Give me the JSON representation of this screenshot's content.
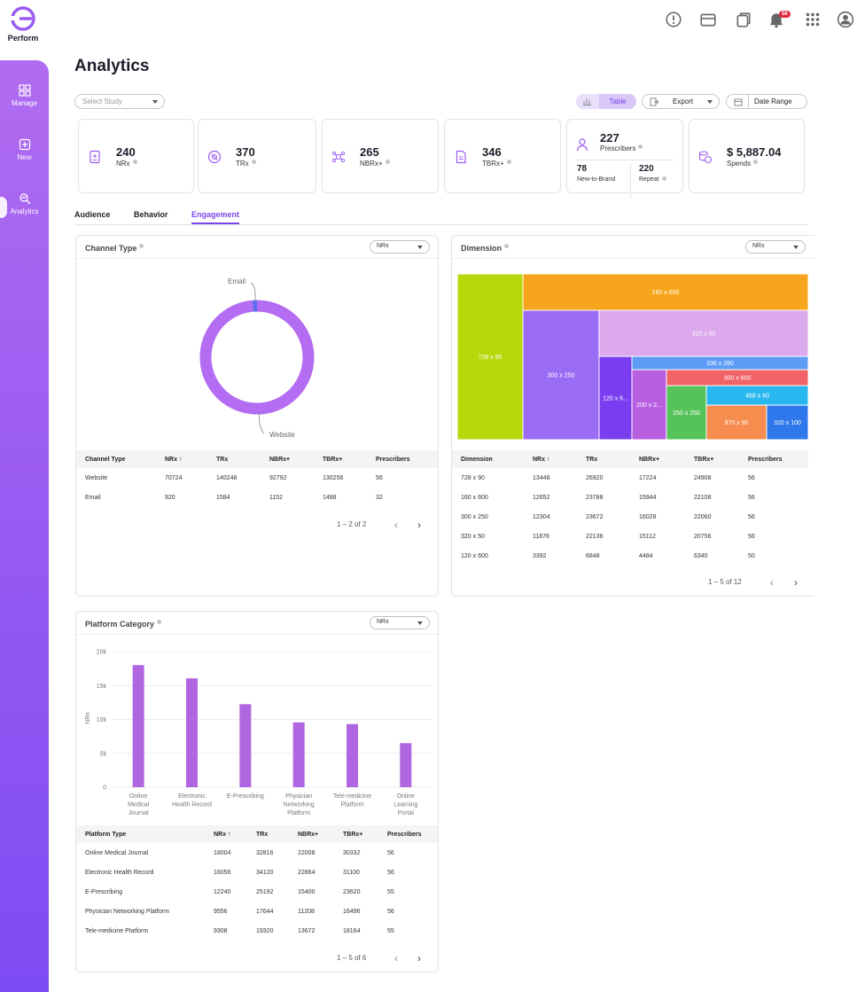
{
  "app": {
    "name": "Perform"
  },
  "sidebar": {
    "items": [
      {
        "label": "Manage"
      },
      {
        "label": "New"
      },
      {
        "label": "Analytics"
      }
    ]
  },
  "header": {
    "notification_count": "56"
  },
  "page": {
    "title": "Analytics"
  },
  "filters": {
    "study_placeholder": "Select Study",
    "view_toggle_label": "Table",
    "export_label": "Export",
    "date_range_label": "Date Range"
  },
  "kpis": [
    {
      "value": "240",
      "label": "NRx"
    },
    {
      "value": "370",
      "label": "TRx"
    },
    {
      "value": "265",
      "label": "NBRx+"
    },
    {
      "value": "346",
      "label": "TBRx+"
    },
    {
      "value": "227",
      "label": "Prescribers",
      "sub": [
        {
          "value": "78",
          "label": "New-to-Brand"
        },
        {
          "value": "220",
          "label": "Repeat"
        }
      ]
    },
    {
      "value": "$ 5,887.04",
      "label": "Spends"
    }
  ],
  "tabs": [
    "Audience",
    "Behavior",
    "Engagement"
  ],
  "channel": {
    "title": "Channel Type",
    "metric": "NRx",
    "chart_data": {
      "type": "pie",
      "categories": [
        "Website",
        "Email"
      ],
      "values": [
        70724,
        920
      ],
      "colors": [
        "#b36cf2",
        "#5b6cf0"
      ]
    },
    "donut_labels": {
      "email": "Email",
      "website": "Website"
    },
    "columns": [
      "Channel Type",
      "NRx ↑",
      "TRx",
      "NBRx+",
      "TBRx+",
      "Prescribers"
    ],
    "rows": [
      [
        "Website",
        "70724",
        "140248",
        "92792",
        "130256",
        "56"
      ],
      [
        "Email",
        "920",
        "1584",
        "1152",
        "1488",
        "32"
      ]
    ],
    "pager": "1 – 2 of 2"
  },
  "dimension": {
    "title": "Dimension",
    "metric": "NRx",
    "chart_data": {
      "type": "treemap",
      "tiles": [
        {
          "label": "728 x 90",
          "color": "#b8d80c"
        },
        {
          "label": "160 x 600",
          "color": "#f7a51c"
        },
        {
          "label": "300 x 250",
          "color": "#9b6cf5"
        },
        {
          "label": "320 x 50",
          "color": "#dca9ec"
        },
        {
          "label": "120 x 6...",
          "color": "#7a3ef0"
        },
        {
          "label": "200 x 2...",
          "color": "#b85ee0"
        },
        {
          "label": "336 x 280",
          "color": "#5c9cf7"
        },
        {
          "label": "300 x 600",
          "color": "#f26367"
        },
        {
          "label": "468 x 60",
          "color": "#29b7ef"
        },
        {
          "label": "250 x 250",
          "color": "#56c25a"
        },
        {
          "label": "970 x 90",
          "color": "#f78c4f"
        },
        {
          "label": "320 x 100",
          "color": "#2e78ec"
        }
      ]
    },
    "columns": [
      "Dimension",
      "NRx ↑",
      "TRx",
      "NBRx+",
      "TBRx+",
      "Prescribers"
    ],
    "rows": [
      [
        "728 x 90",
        "13448",
        "26920",
        "17224",
        "24908",
        "56"
      ],
      [
        "160 x 600",
        "12652",
        "23788",
        "15944",
        "22108",
        "56"
      ],
      [
        "300 x 250",
        "12304",
        "23672",
        "16028",
        "22060",
        "56"
      ],
      [
        "320 x 50",
        "11876",
        "22136",
        "15112",
        "20756",
        "56"
      ],
      [
        "120 x 600",
        "3392",
        "6848",
        "4484",
        "6340",
        "50"
      ]
    ],
    "pager": "1 – 5 of 12"
  },
  "platform": {
    "title": "Platform Category",
    "metric": "NRx",
    "chart_data": {
      "type": "bar",
      "categories": [
        [
          "Online",
          "Medical",
          "Journal"
        ],
        [
          "Electronic",
          "Health Record"
        ],
        [
          "E-Prescribing"
        ],
        [
          "Physician",
          "Networking",
          "Platform"
        ],
        [
          "Tele-medicine",
          "Platform"
        ],
        [
          "Online",
          "Learning",
          "Portal"
        ]
      ],
      "values": [
        18004,
        16056,
        12240,
        9556,
        9308,
        6500
      ],
      "ylabel": "NRx",
      "yticks": [
        "0",
        "5k",
        "10k",
        "15k",
        "20k"
      ],
      "ylim": [
        0,
        20000
      ],
      "color": "#b066e0"
    },
    "columns": [
      "Platform Type",
      "NRx ↑",
      "TRx",
      "NBRx+",
      "TBRx+",
      "Prescribers"
    ],
    "rows": [
      [
        "Online Medical Journal",
        "18004",
        "32816",
        "22008",
        "30332",
        "56"
      ],
      [
        "Electronic Health Record",
        "16056",
        "34120",
        "22864",
        "31100",
        "56"
      ],
      [
        "E-Prescribing",
        "12240",
        "25192",
        "15400",
        "23620",
        "55"
      ],
      [
        "Physician Networking Platform",
        "9556",
        "17644",
        "11208",
        "16496",
        "56"
      ],
      [
        "Tele-medicine Platform",
        "9308",
        "19320",
        "13672",
        "18164",
        "55"
      ]
    ],
    "pager": "1 – 5 of 6"
  }
}
